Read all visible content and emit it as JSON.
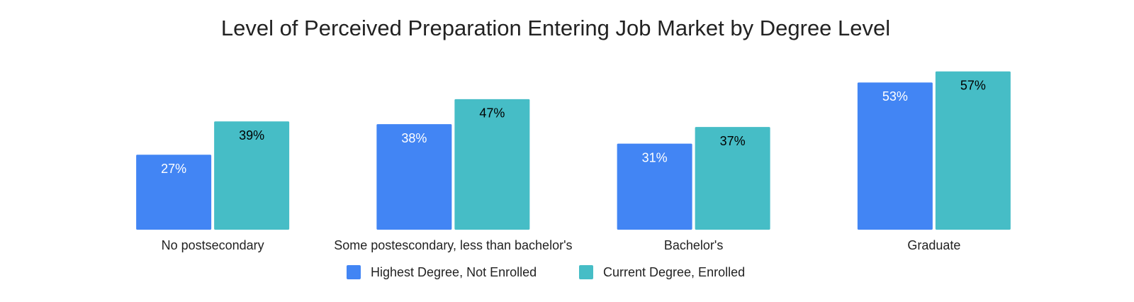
{
  "chart_data": {
    "type": "bar",
    "title": "Level of Perceived Preparation Entering Job Market by Degree Level",
    "categories": [
      "No postsecondary",
      "Some postescondary, less than bachelor's",
      "Bachelor's",
      "Graduate"
    ],
    "series": [
      {
        "name": "Highest Degree, Not Enrolled",
        "color": "#4285f4",
        "values": [
          27,
          38,
          31,
          53
        ],
        "value_labels": [
          "27%",
          "38%",
          "31%",
          "53%"
        ],
        "label_color": "#ffffff"
      },
      {
        "name": "Current Degree, Enrolled",
        "color": "#46bdc6",
        "values": [
          39,
          47,
          37,
          57
        ],
        "value_labels": [
          "39%",
          "47%",
          "37%",
          "57%"
        ],
        "label_color": "#000000"
      }
    ],
    "ylim": [
      0,
      60
    ],
    "legend": "bottom"
  }
}
